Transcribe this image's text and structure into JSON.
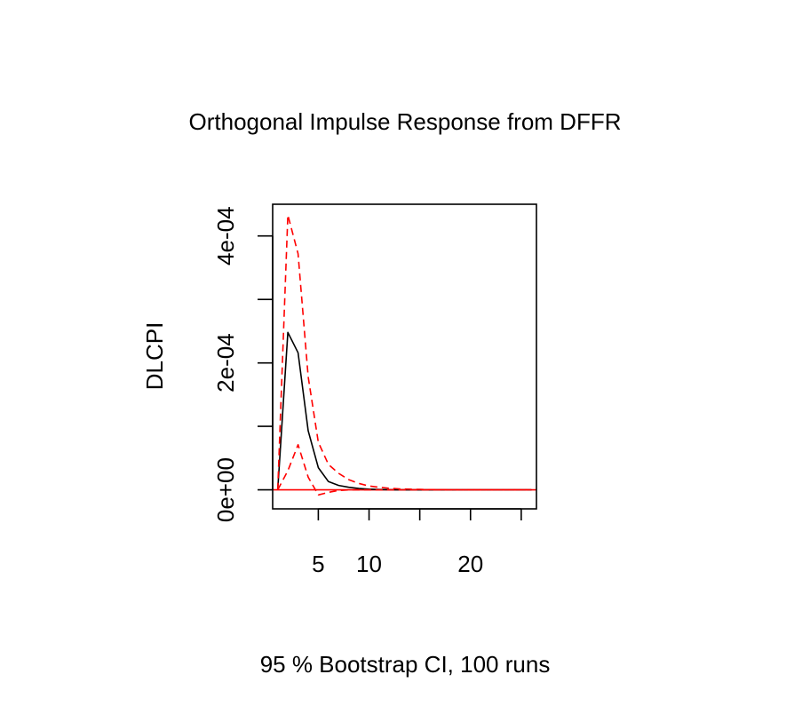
{
  "chart_data": {
    "type": "line",
    "title": "Orthogonal Impulse Response from DFFR",
    "xlabel": "95 % Bootstrap CI,  100 runs",
    "ylabel": "DLCPI",
    "xlim": [
      0.5,
      26.5
    ],
    "ylim": [
      -3e-05,
      0.00045
    ],
    "x_ticks": [
      5,
      10,
      15,
      20,
      25
    ],
    "x_tick_labels": [
      "5",
      "10",
      "",
      "20",
      ""
    ],
    "y_ticks": [
      0,
      0.0001,
      0.0002,
      0.0003,
      0.0004
    ],
    "y_tick_labels": [
      "0e+00",
      "",
      "2e-04",
      "",
      "4e-04"
    ],
    "x": [
      1,
      2,
      3,
      4,
      5,
      6,
      7,
      8,
      9,
      10,
      11,
      12,
      13,
      14,
      15,
      16,
      17,
      18,
      19,
      20,
      21,
      22,
      23,
      24,
      25,
      26
    ],
    "series": [
      {
        "role": "irf",
        "color": "#000000",
        "dash": "solid",
        "values": [
          0,
          0.000248,
          0.000216,
          9.3e-05,
          3.5e-05,
          1.3e-05,
          7e-06,
          4e-06,
          2e-06,
          1e-06,
          5e-07,
          2e-07,
          0,
          0,
          0,
          0,
          0,
          0,
          0,
          0,
          0,
          0,
          0,
          0,
          0,
          0
        ]
      },
      {
        "role": "upper",
        "color": "#ff0000",
        "dash": "dashed",
        "values": [
          0,
          0.000433,
          0.000372,
          0.000178,
          7.5e-05,
          4e-05,
          2.6e-05,
          1.6e-05,
          1e-05,
          6e-06,
          4e-06,
          2.5e-06,
          1.5e-06,
          1e-06,
          6e-07,
          4e-07,
          2e-07,
          1e-07,
          0,
          0,
          0,
          0,
          0,
          0,
          0,
          0
        ]
      },
      {
        "role": "lower",
        "color": "#ff0000",
        "dash": "dashed",
        "values": [
          0,
          3e-05,
          7.1e-05,
          2e-05,
          -8e-06,
          -4e-06,
          -1e-06,
          0,
          0,
          0,
          0,
          0,
          0,
          0,
          0,
          0,
          0,
          0,
          0,
          0,
          0,
          0,
          0,
          0,
          0,
          0
        ]
      }
    ],
    "reference_line": {
      "y": 0,
      "color": "#ff0000"
    }
  }
}
